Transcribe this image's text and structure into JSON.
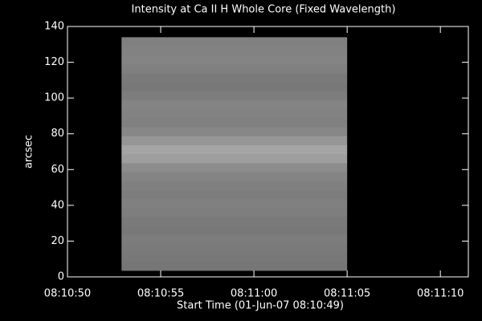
{
  "chart_data": {
    "type": "image",
    "title": "Intensity at Ca II H Whole Core (Fixed Wavelength)",
    "x_label": "Start Time (01-Jun-07 08:10:49)",
    "y_label": "arcsec",
    "xlim": [
      29450,
      29471.5
    ],
    "xticks": [
      {
        "value": 29450,
        "label": "08:10:50"
      },
      {
        "value": 29455,
        "label": "08:10:55"
      },
      {
        "value": 29460,
        "label": "08:11:00"
      },
      {
        "value": 29465,
        "label": "08:11:05"
      },
      {
        "value": 29470,
        "label": "08:11:10"
      }
    ],
    "ylim": [
      0,
      140
    ],
    "yticks": [
      0,
      20,
      40,
      60,
      80,
      100,
      120,
      140
    ],
    "colormap": "gray",
    "image": {
      "x": [
        29452.9,
        29465
      ],
      "y": [
        3.6,
        134
      ],
      "row_values": [
        118,
        120,
        122,
        124,
        120,
        122,
        126,
        128,
        125,
        128,
        132,
        140,
        158,
        165,
        150,
        135,
        128,
        130,
        132,
        125,
        120,
        122,
        128,
        132,
        130,
        128
      ]
    }
  }
}
